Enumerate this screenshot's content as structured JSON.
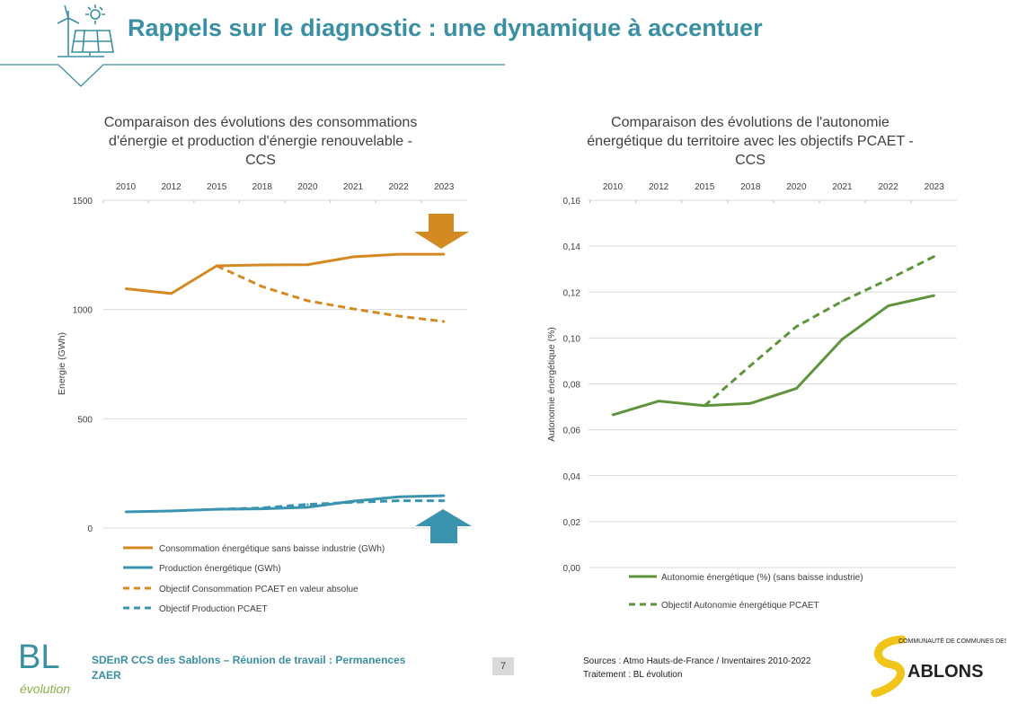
{
  "header": {
    "title": "Rappels sur le diagnostic : une dynamique à accentuer",
    "icon": "wind-turbine-solar-panel-icon"
  },
  "colors": {
    "teal": "#3a8fa3",
    "orange": "#d48a22",
    "blue": "#3a94b0",
    "green": "#5e943c",
    "grid": "#d9d9d9"
  },
  "chart_data": [
    {
      "type": "line",
      "title": "Comparaison des évolutions des consommations d'énergie et production d'énergie renouvelable - CCS",
      "title_lines": [
        "Comparaison des évolutions des consommations",
        "d'énergie et production d'énergie renouvelable -",
        "CCS"
      ],
      "categories": [
        "2010",
        "2012",
        "2015",
        "2018",
        "2020",
        "2021",
        "2022",
        "2023"
      ],
      "xaxis_position": "top",
      "ylabel": "Energie (GWh)",
      "ylim": [
        0,
        1500
      ],
      "yticks": [
        "0",
        "500",
        "1000",
        "1500"
      ],
      "grid": true,
      "legend": "bottom",
      "series": [
        {
          "name": "Consommation énergétique sans baisse industrie (GWh)",
          "values": [
            1095,
            1073,
            1200,
            1204,
            1205,
            1241,
            1253,
            1253
          ],
          "color": "#d48a22",
          "dash": false
        },
        {
          "name": "Production énergétique (GWh)",
          "values": [
            74,
            78,
            86,
            88,
            95,
            123,
            143,
            148
          ],
          "color": "#3a94b0",
          "dash": false
        },
        {
          "name": "Objectif Consommation PCAET en valeur absolue",
          "values": [
            null,
            null,
            1200,
            1105,
            1040,
            1003,
            970,
            945
          ],
          "color": "#d48a22",
          "dash": true
        },
        {
          "name": "Objectif Production PCAET",
          "values": [
            null,
            null,
            86,
            92,
            108,
            118,
            125,
            125
          ],
          "color": "#3a94b0",
          "dash": true
        }
      ],
      "annotations": [
        {
          "type": "arrow-down",
          "color": "#d48a22"
        },
        {
          "type": "arrow-up",
          "color": "#3a94b0"
        }
      ]
    },
    {
      "type": "line",
      "title": "Comparaison des évolutions de l'autonomie énergétique du territoire avec les objectifs PCAET - CCS",
      "title_lines": [
        "Comparaison des évolutions de l'autonomie",
        "énergétique du territoire avec les objectifs PCAET -",
        "CCS"
      ],
      "categories": [
        "2010",
        "2012",
        "2015",
        "2018",
        "2020",
        "2021",
        "2022",
        "2023"
      ],
      "xaxis_position": "top",
      "ylabel": "Autonomie énergétique (%)",
      "ylim": [
        0,
        0.16
      ],
      "yticks": [
        "0,00",
        "0,02",
        "0,04",
        "0,06",
        "0,08",
        "0,10",
        "0,12",
        "0,14",
        "0,16"
      ],
      "grid": true,
      "legend": "bottom",
      "series": [
        {
          "name": "Autonomie énergétique (%) (sans baisse industrie)",
          "values": [
            0.0665,
            0.0725,
            0.0705,
            0.0715,
            0.078,
            0.0995,
            0.114,
            0.1185
          ],
          "color": "#5e943c",
          "dash": false
        },
        {
          "name": "Objectif Autonomie énergétique PCAET",
          "values": [
            null,
            null,
            0.0705,
            0.088,
            0.105,
            0.116,
            0.1255,
            0.1355
          ],
          "color": "#5e943c",
          "dash": true
        }
      ]
    }
  ],
  "footer": {
    "project_line1": "SDEnR CCS des Sablons – Réunion de travail : Permanences",
    "project_line2": "ZAER",
    "page": "7",
    "sources": "Sources : Atmo Hauts-de-France / Inventaires 2010-2022",
    "treatment": "Traitement : BL évolution",
    "logo_left": "BL évolution",
    "logo_right_top": "COMMUNAUTÉ DE COMMUNES DES",
    "logo_right_main": "ABLONS"
  }
}
